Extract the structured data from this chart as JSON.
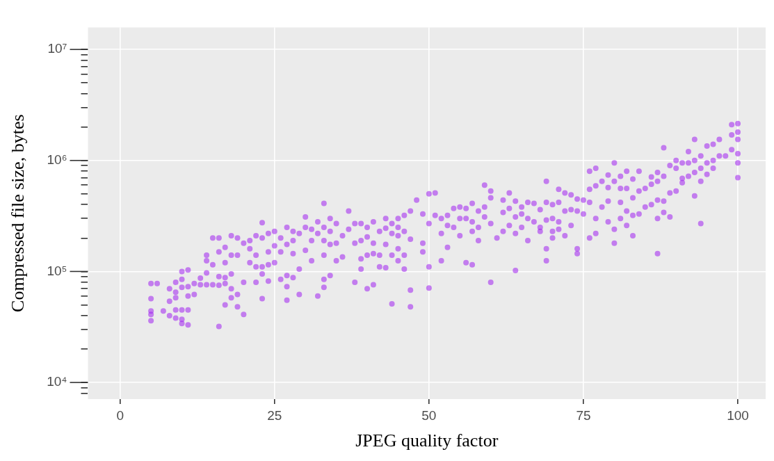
{
  "chart_data": {
    "type": "scatter",
    "xlabel": "JPEG quality factor",
    "ylabel": "Compressed file size, bytes",
    "xlim": [
      -5.2,
      104.5
    ],
    "xticks": [
      0,
      25,
      50,
      75,
      100
    ],
    "ylim": [
      7080,
      15800000
    ],
    "yticks": [
      {
        "value": 8000,
        "label": null
      },
      {
        "value": 9000,
        "label": null
      },
      {
        "value": 10000,
        "label": "10⁴"
      },
      {
        "value": 20000,
        "label": null
      },
      {
        "value": 30000,
        "label": null
      },
      {
        "value": 40000,
        "label": null
      },
      {
        "value": 50000,
        "label": null
      },
      {
        "value": 60000,
        "label": null
      },
      {
        "value": 70000,
        "label": null
      },
      {
        "value": 80000,
        "label": null
      },
      {
        "value": 90000,
        "label": null
      },
      {
        "value": 100000,
        "label": "10⁵"
      },
      {
        "value": 200000,
        "label": null
      },
      {
        "value": 300000,
        "label": null
      },
      {
        "value": 400000,
        "label": null
      },
      {
        "value": 500000,
        "label": null
      },
      {
        "value": 600000,
        "label": null
      },
      {
        "value": 700000,
        "label": null
      },
      {
        "value": 800000,
        "label": null
      },
      {
        "value": 900000,
        "label": null
      },
      {
        "value": 1000000,
        "label": "10⁶"
      },
      {
        "value": 2000000,
        "label": null
      },
      {
        "value": 3000000,
        "label": null
      },
      {
        "value": 4000000,
        "label": null
      },
      {
        "value": 5000000,
        "label": null
      },
      {
        "value": 6000000,
        "label": null
      },
      {
        "value": 7000000,
        "label": null
      },
      {
        "value": 8000000,
        "label": null
      },
      {
        "value": 9000000,
        "label": null
      },
      {
        "value": 10000000,
        "label": "10⁷"
      }
    ],
    "log": "y",
    "grid": true,
    "marker": "circle",
    "series": [
      {
        "color": "#a020f0",
        "x": [
          5,
          5,
          5,
          5,
          5,
          6,
          7,
          8,
          8,
          8,
          9,
          9,
          9,
          9,
          9,
          10,
          10,
          10,
          10,
          10,
          10,
          11,
          11,
          11,
          11,
          11,
          12,
          12,
          13,
          13,
          14,
          14,
          14,
          14,
          15,
          15,
          15,
          16,
          16,
          16,
          16,
          16,
          17,
          17,
          17,
          17,
          17,
          18,
          18,
          18,
          18,
          18,
          19,
          19,
          19,
          19,
          20,
          20,
          20,
          21,
          21,
          21,
          22,
          22,
          22,
          22,
          23,
          23,
          23,
          23,
          23,
          24,
          24,
          24,
          24,
          25,
          25,
          25,
          26,
          26,
          26,
          27,
          27,
          27,
          27,
          27,
          28,
          28,
          28,
          28,
          29,
          29,
          29,
          30,
          30,
          30,
          31,
          31,
          31,
          32,
          32,
          32,
          33,
          33,
          33,
          33,
          33,
          33,
          34,
          34,
          34,
          34,
          35,
          35,
          35,
          36,
          36,
          37,
          37,
          38,
          38,
          38,
          39,
          39,
          39,
          39,
          40,
          40,
          40,
          40,
          41,
          41,
          41,
          41,
          42,
          42,
          42,
          43,
          43,
          43,
          43,
          44,
          44,
          44,
          44,
          45,
          45,
          45,
          45,
          45,
          46,
          46,
          46,
          46,
          47,
          47,
          47,
          47,
          48,
          49,
          49,
          49,
          50,
          50,
          50,
          50,
          51,
          51,
          52,
          52,
          52,
          53,
          53,
          53,
          54,
          54,
          55,
          55,
          55,
          56,
          56,
          56,
          57,
          57,
          57,
          57,
          58,
          58,
          58,
          59,
          59,
          59,
          60,
          60,
          60,
          60,
          61,
          62,
          62,
          62,
          63,
          63,
          63,
          64,
          64,
          64,
          64,
          65,
          65,
          65,
          66,
          66,
          66,
          67,
          67,
          68,
          68,
          68,
          69,
          69,
          69,
          69,
          69,
          70,
          70,
          70,
          70,
          71,
          71,
          71,
          71,
          72,
          72,
          72,
          73,
          73,
          73,
          74,
          74,
          74,
          74,
          75,
          75,
          76,
          76,
          76,
          76,
          77,
          77,
          77,
          77,
          78,
          78,
          79,
          79,
          79,
          79,
          80,
          80,
          80,
          80,
          81,
          81,
          81,
          81,
          82,
          82,
          82,
          82,
          83,
          83,
          83,
          83,
          84,
          84,
          84,
          85,
          85,
          86,
          86,
          86,
          87,
          87,
          87,
          87,
          87,
          88,
          88,
          88,
          88,
          89,
          89,
          89,
          90,
          90,
          90,
          91,
          91,
          91,
          92,
          92,
          92,
          93,
          93,
          93,
          93,
          94,
          94,
          94,
          94,
          95,
          95,
          95,
          96,
          96,
          96,
          97,
          97,
          98,
          99,
          99,
          99,
          100,
          100,
          100,
          100,
          100,
          100
        ],
        "values": [
          78000,
          57000,
          44000,
          41000,
          36000,
          78000,
          44000,
          70000,
          54000,
          40000,
          80000,
          65000,
          58000,
          45000,
          38000,
          100000,
          85000,
          72000,
          45000,
          37000,
          34000,
          103000,
          73000,
          60000,
          45000,
          33000,
          78000,
          62000,
          87000,
          76000,
          140000,
          125000,
          97000,
          76000,
          200000,
          115000,
          76000,
          200000,
          150000,
          90000,
          75000,
          32000,
          165000,
          120000,
          88000,
          78000,
          50000,
          210000,
          140000,
          95000,
          70000,
          58000,
          200000,
          140000,
          62000,
          48000,
          180000,
          80000,
          41000,
          190000,
          160000,
          120000,
          210000,
          140000,
          110000,
          80000,
          275000,
          200000,
          110000,
          95000,
          57000,
          220000,
          150000,
          115000,
          82000,
          230000,
          170000,
          120000,
          200000,
          150000,
          85000,
          250000,
          175000,
          92000,
          73000,
          55000,
          230000,
          190000,
          145000,
          88000,
          220000,
          105000,
          62000,
          310000,
          250000,
          155000,
          240000,
          190000,
          125000,
          280000,
          220000,
          60000,
          410000,
          250000,
          190000,
          140000,
          85000,
          72000,
          300000,
          230000,
          175000,
          92000,
          270000,
          180000,
          125000,
          210000,
          135000,
          350000,
          240000,
          270000,
          180000,
          80000,
          270000,
          190000,
          130000,
          105000,
          250000,
          205000,
          140000,
          70000,
          280000,
          180000,
          145000,
          76000,
          230000,
          140000,
          110000,
          300000,
          245000,
          175000,
          108000,
          270000,
          220000,
          140000,
          51000,
          300000,
          250000,
          210000,
          160000,
          125000,
          320000,
          230000,
          140000,
          105000,
          350000,
          195000,
          68000,
          48000,
          440000,
          330000,
          180000,
          150000,
          500000,
          270000,
          110000,
          71000,
          510000,
          320000,
          300000,
          220000,
          125000,
          320000,
          260000,
          165000,
          370000,
          250000,
          380000,
          300000,
          210000,
          370000,
          300000,
          120000,
          410000,
          280000,
          230000,
          115000,
          350000,
          250000,
          190000,
          600000,
          380000,
          310000,
          530000,
          460000,
          270000,
          80000,
          200000,
          440000,
          340000,
          230000,
          510000,
          370000,
          260000,
          430000,
          310000,
          220000,
          102000,
          380000,
          330000,
          250000,
          420000,
          300000,
          190000,
          410000,
          280000,
          360000,
          250000,
          230000,
          650000,
          420000,
          290000,
          160000,
          125000,
          400000,
          300000,
          230000,
          200000,
          550000,
          420000,
          280000,
          240000,
          510000,
          350000,
          210000,
          490000,
          360000,
          260000,
          450000,
          350000,
          160000,
          145000,
          440000,
          330000,
          800000,
          550000,
          420000,
          200000,
          850000,
          590000,
          300000,
          220000,
          650000,
          380000,
          740000,
          570000,
          430000,
          280000,
          950000,
          650000,
          240000,
          180000,
          720000,
          560000,
          420000,
          300000,
          800000,
          560000,
          350000,
          260000,
          680000,
          460000,
          320000,
          210000,
          800000,
          530000,
          330000,
          560000,
          380000,
          710000,
          610000,
          400000,
          780000,
          650000,
          440000,
          300000,
          145000,
          1300000,
          720000,
          430000,
          340000,
          900000,
          510000,
          310000,
          1000000,
          850000,
          530000,
          950000,
          690000,
          630000,
          1200000,
          950000,
          720000,
          1550000,
          1000000,
          780000,
          480000,
          1100000,
          850000,
          650000,
          270000,
          1350000,
          950000,
          750000,
          1400000,
          1000000,
          850000,
          1550000,
          1100000,
          1100000,
          2100000,
          1700000,
          1250000,
          2150000,
          1800000,
          1550000,
          1150000,
          950000,
          700000
        ]
      }
    ]
  }
}
